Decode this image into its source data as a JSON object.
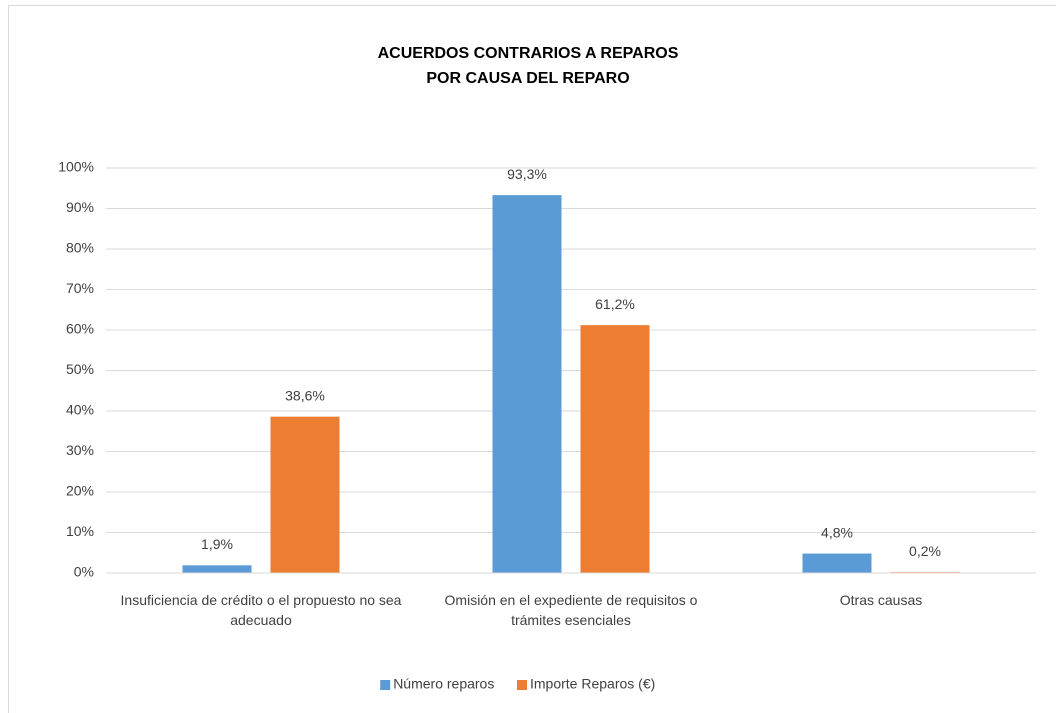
{
  "chart_data": {
    "type": "bar",
    "title": [
      "ACUERDOS CONTRARIOS A REPAROS",
      "POR CAUSA DEL REPARO"
    ],
    "categories": [
      "Insuficiencia de crédito o el propuesto no sea adecuado",
      "Omisión en el expediente de requisitos o trámites esenciales",
      "Otras causas"
    ],
    "series": [
      {
        "name": "Número reparos",
        "color": "#5b9bd5",
        "values": [
          1.9,
          93.3,
          4.8
        ],
        "value_labels": [
          "1,9%",
          "93,3%",
          "4,8%"
        ]
      },
      {
        "name": "Importe Reparos (€)",
        "color": "#ed7d31",
        "values": [
          38.6,
          61.2,
          0.2
        ],
        "value_labels": [
          "38,6%",
          "61,2%",
          "0,2%"
        ]
      }
    ],
    "ylim": [
      0,
      100
    ],
    "yticks": [
      {
        "value": 0,
        "label": "0%"
      },
      {
        "value": 10,
        "label": "10%"
      },
      {
        "value": 20,
        "label": "20%"
      },
      {
        "value": 30,
        "label": "30%"
      },
      {
        "value": 40,
        "label": "40%"
      },
      {
        "value": 50,
        "label": "50%"
      },
      {
        "value": 60,
        "label": "60%"
      },
      {
        "value": 70,
        "label": "70%"
      },
      {
        "value": 80,
        "label": "80%"
      },
      {
        "value": 90,
        "label": "90%"
      },
      {
        "value": 100,
        "label": "100%"
      }
    ],
    "grid": true,
    "legend": "bottom"
  }
}
